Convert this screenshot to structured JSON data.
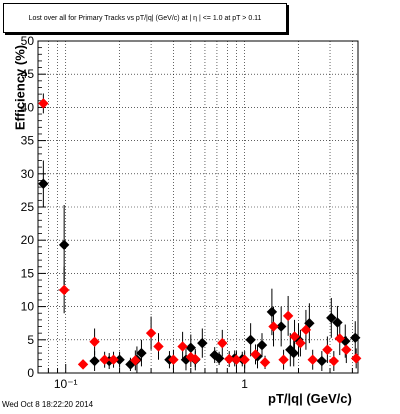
{
  "title": "Lost over all for Primary Tracks vs pT/|q| (GeV/c) at |  η | <= 1.0 at pT > 0.11",
  "footer_timestamp": "Wed Oct  8 18:22:20 2014",
  "chart_data": {
    "type": "scatter",
    "title": "Lost over all for Primary Tracks vs pT/|q| (GeV/c) at |  η | <= 1.0 at pT > 0.11",
    "xlabel": "pT/|q| (GeV/c)",
    "ylabel": "Efficiency (%)",
    "xscale": "log",
    "xlim": [
      0.07,
      4.3
    ],
    "ylim": [
      0,
      50
    ],
    "yticks": [
      0,
      5,
      10,
      15,
      20,
      25,
      30,
      35,
      40,
      45,
      50
    ],
    "xticks": [
      {
        "value": 0.1,
        "label": "10⁻¹"
      },
      {
        "value": 1,
        "label": "1"
      }
    ],
    "grid": true,
    "colors": {
      "black_series": "#000000",
      "red_series": "#ff0000",
      "errors": "#000000"
    },
    "series": [
      {
        "marker": "diamond",
        "color": "#000000",
        "points": [
          {
            "x": 0.075,
            "y": 28.5,
            "yerr": 3.5,
            "xerr": 0.004
          },
          {
            "x": 0.098,
            "y": 19.3,
            "yerr": 6.0,
            "xerr": 0.005
          },
          {
            "x": 0.145,
            "y": 1.8,
            "yerr": 1.5
          },
          {
            "x": 0.175,
            "y": 1.8,
            "yerr": 1.2
          },
          {
            "x": 0.2,
            "y": 2.0,
            "yerr": 1.2
          },
          {
            "x": 0.23,
            "y": 1.3,
            "yerr": 1.0
          },
          {
            "x": 0.25,
            "y": 2.0,
            "yerr": 2.0
          },
          {
            "x": 0.265,
            "y": 3.0,
            "yerr": 2.0
          },
          {
            "x": 0.38,
            "y": 2.0,
            "yerr": 1.3
          },
          {
            "x": 0.47,
            "y": 2.0,
            "yerr": 1.6
          },
          {
            "x": 0.5,
            "y": 3.8,
            "yerr": 2.0
          },
          {
            "x": 0.53,
            "y": 2.0,
            "yerr": 1.6
          },
          {
            "x": 0.58,
            "y": 4.5,
            "yerr": 2.2
          },
          {
            "x": 0.68,
            "y": 2.7,
            "yerr": 1.2
          },
          {
            "x": 0.72,
            "y": 2.2,
            "yerr": 1.0
          },
          {
            "x": 0.88,
            "y": 2.2,
            "yerr": 1.2
          },
          {
            "x": 0.97,
            "y": 2.1,
            "yerr": 1.1
          },
          {
            "x": 1.08,
            "y": 5.0,
            "yerr": 2.5
          },
          {
            "x": 1.18,
            "y": 2.5,
            "yerr": 1.8
          },
          {
            "x": 1.25,
            "y": 4.2,
            "yerr": 1.8
          },
          {
            "x": 1.42,
            "y": 9.2,
            "yerr": 3.5
          },
          {
            "x": 1.6,
            "y": 7.0,
            "yerr": 3.0
          },
          {
            "x": 1.8,
            "y": 3.5,
            "yerr": 2.5
          },
          {
            "x": 1.88,
            "y": 3.0,
            "yerr": 2.0
          },
          {
            "x": 2.0,
            "y": 5.0,
            "yerr": 2.5
          },
          {
            "x": 2.3,
            "y": 7.5,
            "yerr": 3.0
          },
          {
            "x": 2.7,
            "y": 1.8,
            "yerr": 1.5
          },
          {
            "x": 3.05,
            "y": 8.3,
            "yerr": 3.0
          },
          {
            "x": 3.3,
            "y": 7.6,
            "yerr": 2.5
          },
          {
            "x": 3.65,
            "y": 4.8,
            "yerr": 2.5
          },
          {
            "x": 4.15,
            "y": 5.3,
            "yerr": 2.5
          }
        ]
      },
      {
        "marker": "diamond",
        "color": "#ff0000",
        "points": [
          {
            "x": 0.075,
            "y": 40.6,
            "yerr": 1.5,
            "xerr": 0.004
          },
          {
            "x": 0.098,
            "y": 12.5,
            "yerr": 3.5,
            "xerr": 0.007
          },
          {
            "x": 0.125,
            "y": 1.3,
            "yerr": 0.5
          },
          {
            "x": 0.145,
            "y": 4.7,
            "yerr": 2.0
          },
          {
            "x": 0.165,
            "y": 2.0,
            "yerr": 1.2
          },
          {
            "x": 0.185,
            "y": 2.0,
            "yerr": 1.2
          },
          {
            "x": 0.245,
            "y": 1.9,
            "yerr": 1.5
          },
          {
            "x": 0.3,
            "y": 6.0,
            "yerr": 2.5
          },
          {
            "x": 0.33,
            "y": 4.0,
            "yerr": 2.0
          },
          {
            "x": 0.4,
            "y": 2.0,
            "yerr": 1.5
          },
          {
            "x": 0.45,
            "y": 4.0,
            "yerr": 2.2
          },
          {
            "x": 0.5,
            "y": 2.4,
            "yerr": 1.5
          },
          {
            "x": 0.53,
            "y": 2.1,
            "yerr": 1.2
          },
          {
            "x": 0.75,
            "y": 4.5,
            "yerr": 2.0
          },
          {
            "x": 0.82,
            "y": 2.1,
            "yerr": 1.2
          },
          {
            "x": 0.9,
            "y": 2.0,
            "yerr": 1.3
          },
          {
            "x": 1.0,
            "y": 2.0,
            "yerr": 1.3
          },
          {
            "x": 1.15,
            "y": 2.8,
            "yerr": 1.5
          },
          {
            "x": 1.3,
            "y": 1.6,
            "yerr": 1.0
          },
          {
            "x": 1.45,
            "y": 7.0,
            "yerr": 3.0
          },
          {
            "x": 1.65,
            "y": 2.0,
            "yerr": 1.5
          },
          {
            "x": 1.75,
            "y": 8.6,
            "yerr": 3.0
          },
          {
            "x": 1.9,
            "y": 5.5,
            "yerr": 2.5
          },
          {
            "x": 2.05,
            "y": 4.5,
            "yerr": 2.0
          },
          {
            "x": 2.2,
            "y": 6.5,
            "yerr": 3.0
          },
          {
            "x": 2.4,
            "y": 2.0,
            "yerr": 1.5
          },
          {
            "x": 2.9,
            "y": 3.5,
            "yerr": 2.0
          },
          {
            "x": 3.15,
            "y": 1.8,
            "yerr": 1.5
          },
          {
            "x": 3.4,
            "y": 5.2,
            "yerr": 2.5
          },
          {
            "x": 3.7,
            "y": 3.5,
            "yerr": 2.0
          },
          {
            "x": 4.2,
            "y": 2.2,
            "yerr": 1.5
          }
        ]
      }
    ]
  }
}
